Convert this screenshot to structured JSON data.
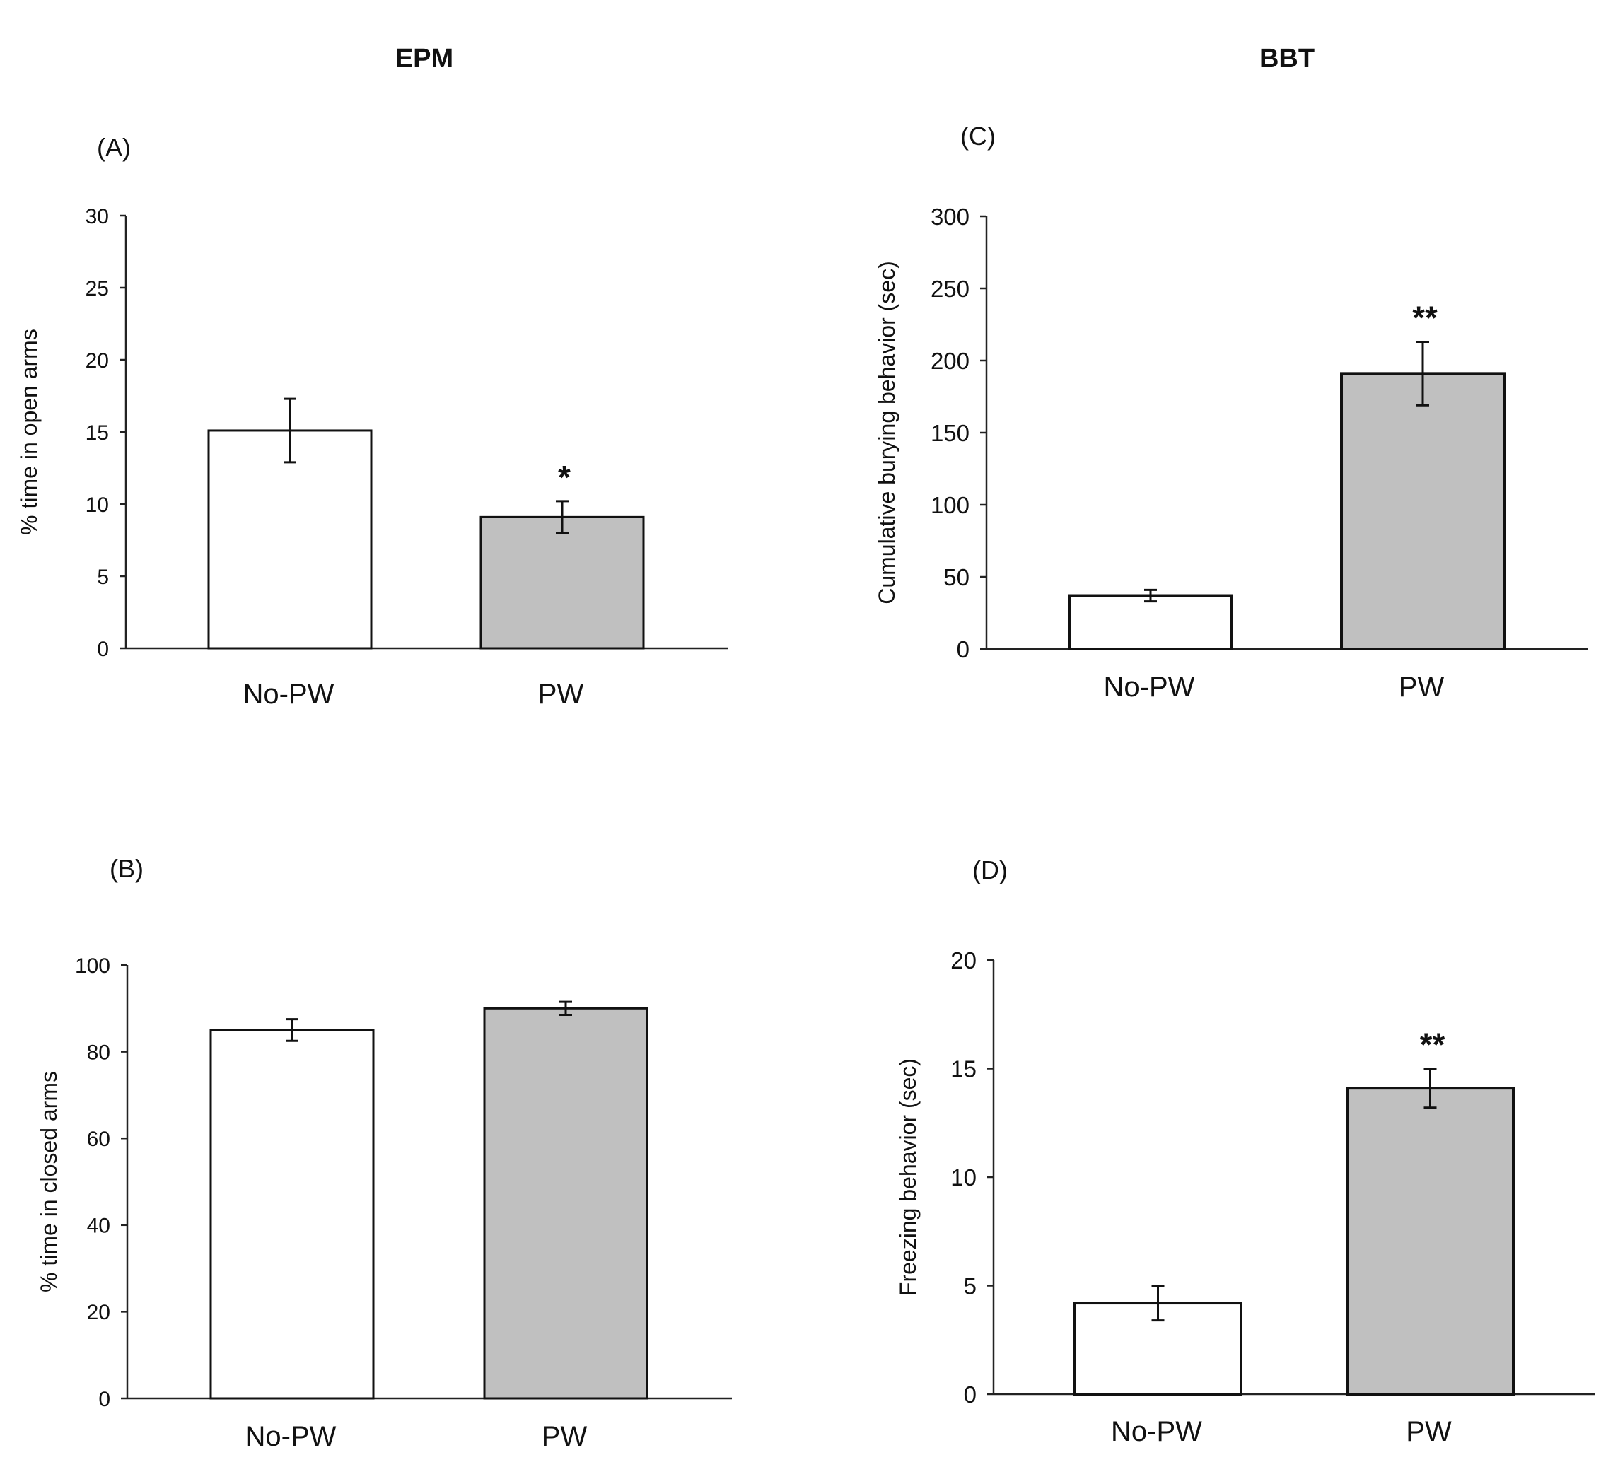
{
  "titles": {
    "left": "EPM",
    "right": "BBT"
  },
  "chart_data": [
    {
      "id": "A",
      "panel_label": "(A)",
      "type": "bar",
      "categories": [
        "No-PW",
        "PW"
      ],
      "values": [
        15.1,
        9.1
      ],
      "errors": [
        2.2,
        1.1
      ],
      "significance": [
        "",
        "*"
      ],
      "bar_fills": [
        "#ffffff",
        "#c0c0c0"
      ],
      "ylabel": "% time in open arms",
      "ylim": [
        0,
        30
      ],
      "yticks": [
        0,
        5,
        10,
        15,
        20,
        25,
        30
      ],
      "grid": false
    },
    {
      "id": "B",
      "panel_label": "(B)",
      "type": "bar",
      "categories": [
        "No-PW",
        "PW"
      ],
      "values": [
        85,
        90
      ],
      "errors": [
        2.5,
        1.5
      ],
      "significance": [
        "",
        ""
      ],
      "bar_fills": [
        "#ffffff",
        "#c0c0c0"
      ],
      "ylabel": "% time in closed arms",
      "ylim": [
        0,
        100
      ],
      "yticks": [
        0,
        20,
        40,
        60,
        80,
        100
      ],
      "grid": false
    },
    {
      "id": "C",
      "panel_label": "(C)",
      "type": "bar",
      "categories": [
        "No-PW",
        "PW"
      ],
      "values": [
        37,
        191
      ],
      "errors": [
        4,
        22
      ],
      "significance": [
        "",
        "**"
      ],
      "bar_fills": [
        "#ffffff",
        "#c0c0c0"
      ],
      "ylabel": "Cumulative burying behavior (sec)",
      "ylim": [
        0,
        300
      ],
      "yticks": [
        0,
        50,
        100,
        150,
        200,
        250,
        300
      ],
      "grid": false
    },
    {
      "id": "D",
      "panel_label": "(D)",
      "type": "bar",
      "categories": [
        "No-PW",
        "PW"
      ],
      "values": [
        4.2,
        14.1
      ],
      "errors": [
        0.8,
        0.9
      ],
      "significance": [
        "",
        "**"
      ],
      "bar_fills": [
        "#ffffff",
        "#c0c0c0"
      ],
      "ylabel": "Freezing behavior (sec)",
      "ylim": [
        0,
        20
      ],
      "yticks": [
        0,
        5,
        10,
        15,
        20
      ],
      "grid": false
    }
  ]
}
